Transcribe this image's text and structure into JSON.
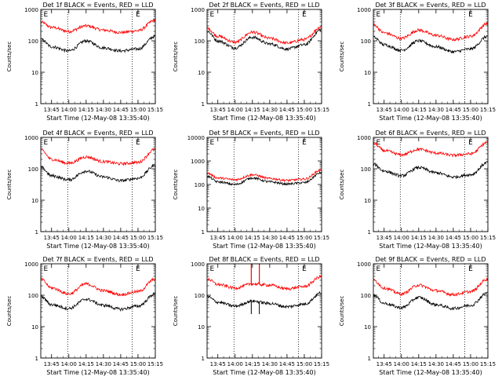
{
  "page": {
    "background": "#ffffff",
    "foreground": "#000000"
  },
  "chart_data": [
    {
      "type": "line",
      "title": "Det 1f BLACK = Events, RED = LLD",
      "xlabel": "Start Time (12-May-08 13:35:40)",
      "ylabel": "Counts/sec",
      "yscale": "log",
      "ylim": [
        1,
        1000
      ],
      "xlim": [
        "13:35:40",
        "15:15:00"
      ],
      "x_tick_labels": [
        "13:45",
        "14:00",
        "14:15",
        "14:30",
        "14:45",
        "15:00",
        "15:15"
      ],
      "y_tick_labels": [
        "1",
        "10",
        "100",
        "1000"
      ],
      "markers": [
        "E",
        "E"
      ],
      "marker_times": [
        "13:40",
        "15:00"
      ],
      "dotted_lines": [
        "13:59",
        "14:55"
      ],
      "series": [
        {
          "color": "#ff0000",
          "x": [
            "13:36",
            "13:45",
            "14:00",
            "14:15",
            "14:30",
            "14:45",
            "15:00",
            "15:15"
          ],
          "y": [
            390,
            270,
            200,
            300,
            220,
            185,
            210,
            460
          ]
        },
        {
          "color": "#000000",
          "x": [
            "13:36",
            "13:45",
            "14:00",
            "14:15",
            "14:30",
            "14:45",
            "15:00",
            "15:15"
          ],
          "y": [
            110,
            65,
            48,
            100,
            60,
            48,
            55,
            140
          ]
        }
      ]
    },
    {
      "type": "line",
      "title": "Det 2f BLACK = Events, RED = LLD",
      "xlabel": "Start Time (12-May-08 13:35:40)",
      "ylabel": "Counts/sec",
      "yscale": "log",
      "ylim": [
        1,
        1000
      ],
      "xlim": [
        "13:35:40",
        "15:15:00"
      ],
      "x_tick_labels": [
        "13:45",
        "14:00",
        "14:15",
        "14:30",
        "14:45",
        "15:00",
        "15:15"
      ],
      "y_tick_labels": [
        "1",
        "10",
        "100",
        "1000"
      ],
      "markers": [
        "E",
        "E"
      ],
      "marker_times": [
        "13:40",
        "15:00"
      ],
      "dotted_lines": [
        "13:59",
        "14:55"
      ],
      "series": [
        {
          "color": "#ff0000",
          "x": [
            "13:36",
            "13:45",
            "14:00",
            "14:15",
            "14:30",
            "14:45",
            "15:00",
            "15:15"
          ],
          "y": [
            250,
            140,
            90,
            190,
            120,
            85,
            110,
            280
          ]
        },
        {
          "color": "#000000",
          "x": [
            "13:36",
            "13:45",
            "14:00",
            "14:15",
            "14:30",
            "14:45",
            "15:00",
            "15:15"
          ],
          "y": [
            200,
            100,
            60,
            130,
            80,
            55,
            75,
            230
          ]
        }
      ]
    },
    {
      "type": "line",
      "title": "Det 3f BLACK = Events, RED = LLD",
      "xlabel": "Start Time (12-May-08 13:35:40)",
      "ylabel": "Counts/sec",
      "yscale": "log",
      "ylim": [
        1,
        1000
      ],
      "xlim": [
        "13:35:40",
        "15:15:00"
      ],
      "x_tick_labels": [
        "13:45",
        "14:00",
        "14:15",
        "14:30",
        "14:45",
        "15:00",
        "15:15"
      ],
      "y_tick_labels": [
        "1",
        "10",
        "100",
        "1000"
      ],
      "markers": [
        "E",
        "E"
      ],
      "marker_times": [
        "13:40",
        "15:00"
      ],
      "dotted_lines": [
        "13:59",
        "14:55"
      ],
      "series": [
        {
          "color": "#ff0000",
          "x": [
            "13:36",
            "13:45",
            "14:00",
            "14:15",
            "14:30",
            "14:45",
            "15:00",
            "15:15"
          ],
          "y": [
            320,
            180,
            120,
            220,
            150,
            110,
            140,
            360
          ]
        },
        {
          "color": "#000000",
          "x": [
            "13:36",
            "13:45",
            "14:00",
            "14:15",
            "14:30",
            "14:45",
            "15:00",
            "15:15"
          ],
          "y": [
            130,
            75,
            50,
            100,
            65,
            45,
            55,
            140
          ]
        }
      ]
    },
    {
      "type": "line",
      "title": "Det 4f BLACK = Events, RED = LLD",
      "xlabel": "Start Time (12-May-08 13:35:40)",
      "ylabel": "Counts/sec",
      "yscale": "log",
      "ylim": [
        1,
        1000
      ],
      "xlim": [
        "13:35:40",
        "15:15:00"
      ],
      "x_tick_labels": [
        "13:45",
        "14:00",
        "14:15",
        "14:30",
        "14:45",
        "15:00",
        "15:15"
      ],
      "y_tick_labels": [
        "1",
        "10",
        "100",
        "1000"
      ],
      "markers": [
        "E",
        "E"
      ],
      "marker_times": [
        "13:40",
        "15:00"
      ],
      "dotted_lines": [
        "13:59",
        "14:55"
      ],
      "series": [
        {
          "color": "#ff0000",
          "x": [
            "13:36",
            "13:45",
            "14:00",
            "14:15",
            "14:30",
            "14:45",
            "15:00",
            "15:15"
          ],
          "y": [
            400,
            200,
            150,
            240,
            170,
            145,
            160,
            420
          ]
        },
        {
          "color": "#000000",
          "x": [
            "13:36",
            "13:45",
            "14:00",
            "14:15",
            "14:30",
            "14:45",
            "15:00",
            "15:15"
          ],
          "y": [
            110,
            60,
            45,
            85,
            55,
            42,
            50,
            130
          ]
        }
      ]
    },
    {
      "type": "line",
      "title": "Det 5f BLACK = Events, RED = LLD",
      "xlabel": "Start Time (12-May-08 13:35:40)",
      "ylabel": "Counts/sec",
      "yscale": "log",
      "ylim": [
        1,
        10000
      ],
      "xlim": [
        "13:35:40",
        "15:15:00"
      ],
      "x_tick_labels": [
        "13:45",
        "14:00",
        "14:15",
        "14:30",
        "14:45",
        "15:00",
        "15:15"
      ],
      "y_tick_labels": [
        "1",
        "10",
        "100",
        "1000",
        "10000"
      ],
      "markers": [
        "E",
        "E"
      ],
      "marker_times": [
        "13:40",
        "15:00"
      ],
      "dotted_lines": [
        "13:59",
        "14:55"
      ],
      "series": [
        {
          "color": "#ff0000",
          "x": [
            "13:36",
            "13:45",
            "14:00",
            "14:15",
            "14:30",
            "14:45",
            "15:00",
            "15:15"
          ],
          "y": [
            300,
            190,
            160,
            260,
            180,
            150,
            170,
            420
          ]
        },
        {
          "color": "#000000",
          "x": [
            "13:36",
            "13:45",
            "14:00",
            "14:15",
            "14:30",
            "14:45",
            "15:00",
            "15:15"
          ],
          "y": [
            220,
            130,
            100,
            190,
            130,
            105,
            120,
            320
          ]
        }
      ]
    },
    {
      "type": "line",
      "title": "Det 6f BLACK = Events, RED = LLD",
      "xlabel": "Start Time (12-May-08 13:35:40)",
      "ylabel": "Counts/sec",
      "yscale": "log",
      "ylim": [
        1,
        1000
      ],
      "xlim": [
        "13:35:40",
        "15:15:00"
      ],
      "x_tick_labels": [
        "13:45",
        "14:00",
        "14:15",
        "14:30",
        "14:45",
        "15:00",
        "15:15"
      ],
      "y_tick_labels": [
        "1",
        "10",
        "100",
        "1000"
      ],
      "markers": [
        "E",
        "E"
      ],
      "marker_times": [
        "13:40",
        "15:00"
      ],
      "dotted_lines": [
        "13:59",
        "14:55"
      ],
      "series": [
        {
          "color": "#ff0000",
          "x": [
            "13:36",
            "13:45",
            "14:00",
            "14:15",
            "14:30",
            "14:45",
            "15:00",
            "15:15"
          ],
          "y": [
            650,
            380,
            280,
            420,
            320,
            270,
            300,
            700
          ]
        },
        {
          "color": "#000000",
          "x": [
            "13:36",
            "13:45",
            "14:00",
            "14:15",
            "14:30",
            "14:45",
            "15:00",
            "15:15"
          ],
          "y": [
            140,
            85,
            60,
            110,
            75,
            55,
            65,
            160
          ]
        }
      ]
    },
    {
      "type": "line",
      "title": "Det 7f BLACK = Events, RED = LLD",
      "xlabel": "Start Time (12-May-08 13:35:40)",
      "ylabel": "Counts/sec",
      "yscale": "log",
      "ylim": [
        1,
        1000
      ],
      "xlim": [
        "13:35:40",
        "15:15:00"
      ],
      "x_tick_labels": [
        "13:45",
        "14:00",
        "14:15",
        "14:30",
        "14:45",
        "15:00",
        "15:15"
      ],
      "y_tick_labels": [
        "1",
        "10",
        "100",
        "1000"
      ],
      "markers": [
        "E",
        "E"
      ],
      "marker_times": [
        "13:40",
        "15:00"
      ],
      "dotted_lines": [
        "13:59",
        "14:55"
      ],
      "series": [
        {
          "color": "#ff0000",
          "x": [
            "13:36",
            "13:45",
            "14:00",
            "14:15",
            "14:30",
            "14:45",
            "15:00",
            "15:15"
          ],
          "y": [
            320,
            170,
            110,
            230,
            140,
            105,
            130,
            330
          ]
        },
        {
          "color": "#000000",
          "x": [
            "13:36",
            "13:45",
            "14:00",
            "14:15",
            "14:30",
            "14:45",
            "15:00",
            "15:15"
          ],
          "y": [
            90,
            50,
            38,
            75,
            48,
            36,
            45,
            110
          ]
        }
      ]
    },
    {
      "type": "line",
      "title": "Det 8f BLACK = Events, RED = LLD",
      "xlabel": "Start Time (12-May-08 13:35:40)",
      "ylabel": "Counts/sec",
      "yscale": "log",
      "ylim": [
        1,
        1000
      ],
      "xlim": [
        "13:35:40",
        "15:15:00"
      ],
      "x_tick_labels": [
        "13:45",
        "14:00",
        "14:15",
        "14:30",
        "14:45",
        "15:00",
        "15:15"
      ],
      "y_tick_labels": [
        "1",
        "10",
        "100",
        "1000"
      ],
      "markers": [
        "E",
        "E"
      ],
      "marker_times": [
        "13:40",
        "15:00"
      ],
      "dotted_lines": [
        "13:59",
        "14:55"
      ],
      "spikes": {
        "red": [
          "14:14",
          "14:21"
        ],
        "black_dips": [
          "14:14",
          "14:21"
        ]
      },
      "series": [
        {
          "color": "#ff0000",
          "x": [
            "13:36",
            "13:45",
            "14:00",
            "14:15",
            "14:30",
            "14:45",
            "15:00",
            "15:15"
          ],
          "y": [
            330,
            220,
            170,
            230,
            210,
            160,
            190,
            400
          ]
        },
        {
          "color": "#000000",
          "x": [
            "13:36",
            "13:45",
            "14:00",
            "14:15",
            "14:30",
            "14:45",
            "15:00",
            "15:15"
          ],
          "y": [
            90,
            60,
            45,
            65,
            55,
            43,
            52,
            120
          ]
        }
      ]
    },
    {
      "type": "line",
      "title": "Det 9f BLACK = Events, RED = LLD",
      "xlabel": "Start Time (12-May-08 13:35:40)",
      "ylabel": "Counts/sec",
      "yscale": "log",
      "ylim": [
        1,
        1000
      ],
      "xlim": [
        "13:35:40",
        "15:15:00"
      ],
      "x_tick_labels": [
        "13:45",
        "14:00",
        "14:15",
        "14:30",
        "14:45",
        "15:00",
        "15:15"
      ],
      "y_tick_labels": [
        "1",
        "10",
        "100",
        "1000"
      ],
      "markers": [
        "E",
        "E"
      ],
      "marker_times": [
        "13:40",
        "15:00"
      ],
      "dotted_lines": [
        "13:59",
        "14:55"
      ],
      "series": [
        {
          "color": "#ff0000",
          "x": [
            "13:36",
            "13:45",
            "14:00",
            "14:15",
            "14:30",
            "14:45",
            "15:00",
            "15:15"
          ],
          "y": [
            300,
            170,
            110,
            210,
            140,
            105,
            130,
            330
          ]
        },
        {
          "color": "#000000",
          "x": [
            "13:36",
            "13:45",
            "14:00",
            "14:15",
            "14:30",
            "14:45",
            "15:00",
            "15:15"
          ],
          "y": [
            100,
            55,
            40,
            85,
            50,
            38,
            48,
            120
          ]
        }
      ]
    }
  ]
}
